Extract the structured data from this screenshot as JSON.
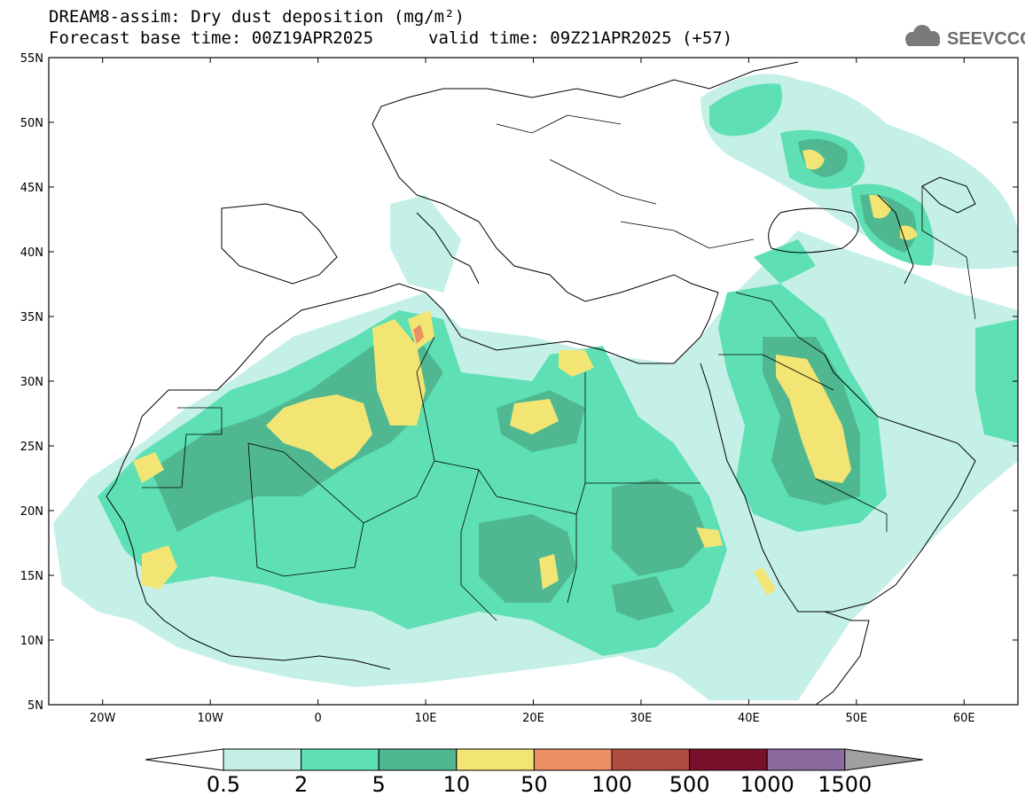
{
  "header": {
    "title": "DREAM8-assim: Dry dust deposition (mg/m²)",
    "base_time": "Forecast base time: 00Z19APR2025",
    "valid_time": "valid time: 09Z21APR2025 (+57)",
    "logo_text": "SEEVCCC"
  },
  "map": {
    "lat_labels": [
      "55N",
      "50N",
      "45N",
      "40N",
      "35N",
      "30N",
      "25N",
      "20N",
      "15N",
      "10N",
      "5N"
    ],
    "lon_labels": [
      "20W",
      "10W",
      "0",
      "10E",
      "20E",
      "30E",
      "40E",
      "50E",
      "60E"
    ],
    "lon_range": [
      -25,
      65
    ],
    "lat_range": [
      5,
      55
    ]
  },
  "colorbar": {
    "colors": [
      "#c4f0e8",
      "#5ee0b4",
      "#4fb890",
      "#f2e574",
      "#eb9065",
      "#b04c40",
      "#7a0f2c",
      "#8c6aa0",
      "#a0a0a0"
    ],
    "labels": [
      "0.5",
      "2",
      "5",
      "10",
      "50",
      "100",
      "500",
      "1000",
      "1500"
    ]
  }
}
